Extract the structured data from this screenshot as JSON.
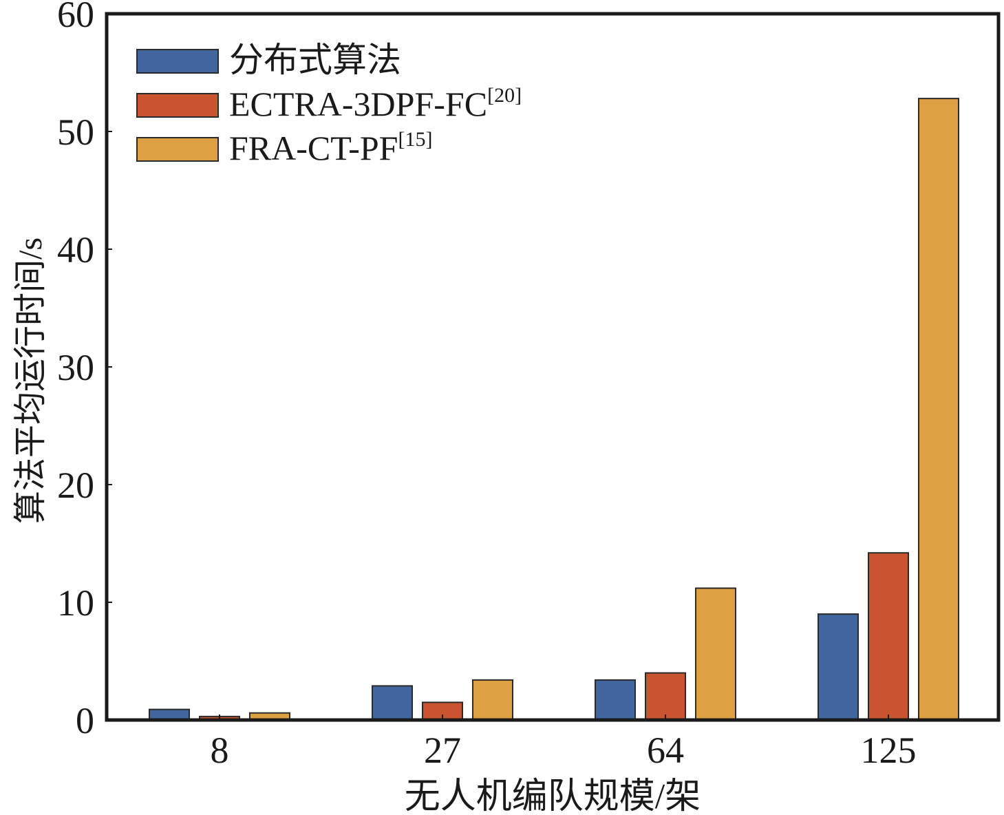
{
  "chart_data": {
    "type": "bar",
    "categories": [
      "8",
      "27",
      "64",
      "125"
    ],
    "series": [
      {
        "name": "分布式算法",
        "values": [
          0.9,
          2.9,
          3.4,
          9.0
        ],
        "color": "#41669e"
      },
      {
        "name": "ECTRA-3DPF-FC",
        "sup": "[20]",
        "values": [
          0.3,
          1.5,
          4.0,
          14.2
        ],
        "color": "#c95530"
      },
      {
        "name": "FRA-CT-PF",
        "sup": "[15]",
        "values": [
          0.6,
          3.4,
          11.2,
          52.8
        ],
        "color": "#dda042"
      }
    ],
    "xlabel": "无人机编队规模/架",
    "ylabel": "算法平均运行时间/s",
    "ylim": [
      0,
      60
    ],
    "yticks": [
      "0",
      "10",
      "20",
      "30",
      "40",
      "50",
      "60"
    ],
    "grid": false,
    "legend_position": "top-left"
  }
}
